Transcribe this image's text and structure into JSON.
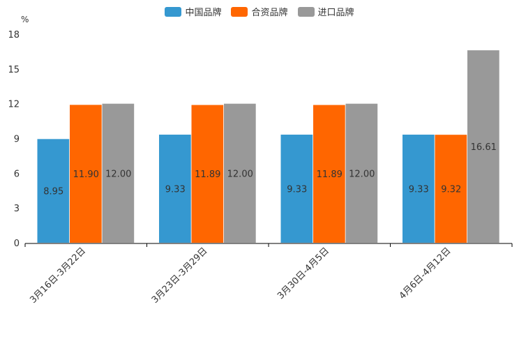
{
  "chart_data": {
    "type": "bar",
    "unit_label": "%",
    "categories": [
      "3月16日-3月22日",
      "3月23日-3月29日",
      "3月30日-4月5日",
      "4月6日-4月12日"
    ],
    "series": [
      {
        "name": "中国品牌",
        "color": "#3598d0",
        "values": [
          8.95,
          9.33,
          9.33,
          9.33
        ],
        "labels": [
          "8.95",
          "9.33",
          "9.33",
          "9.33"
        ]
      },
      {
        "name": "合资品牌",
        "color": "#ff6600",
        "values": [
          11.9,
          11.89,
          11.89,
          9.32
        ],
        "labels": [
          "11.90",
          "11.89",
          "11.89",
          "9.32"
        ]
      },
      {
        "name": "进口品牌",
        "color": "#999999",
        "values": [
          12.0,
          12.0,
          12.0,
          16.61
        ],
        "labels": [
          "12.00",
          "12.00",
          "12.00",
          "16.61"
        ]
      }
    ],
    "ylim": [
      0,
      18
    ],
    "yticks": [
      0,
      3,
      6,
      9,
      12,
      15,
      18
    ],
    "legend_position": "top-center",
    "grid": false
  }
}
